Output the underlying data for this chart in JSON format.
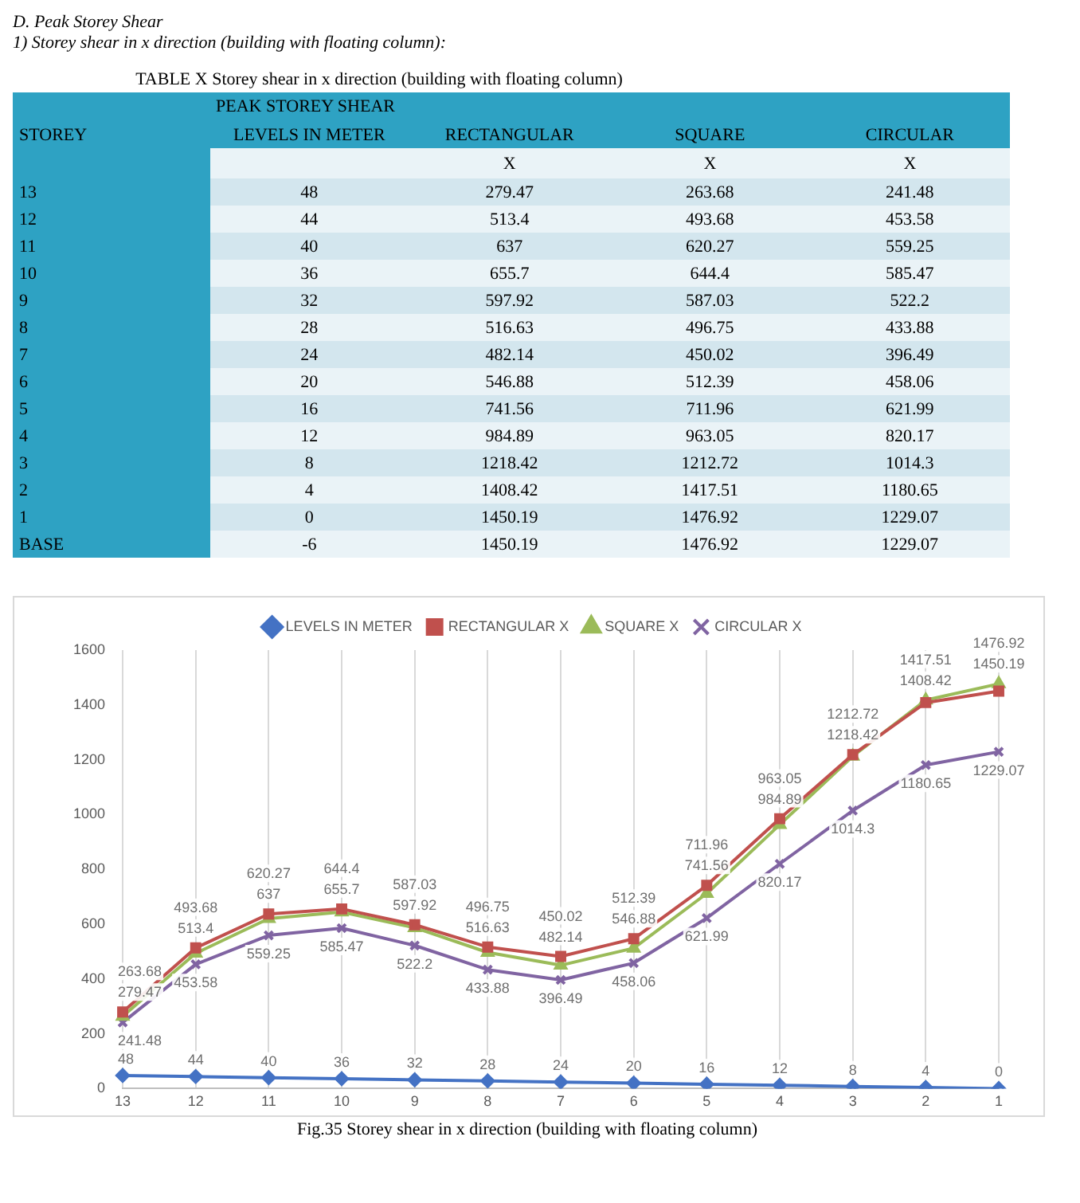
{
  "chart_data": [
    {
      "type": "heatmap",
      "annotations": [
        "D.  Peak Storey Shear",
        "1)  Storey shear in x direction (building with floating column):",
        "X",
        "X",
        "X"
      ],
      "title": "TABLE X Storey shear in x direction (building with floating column)",
      "data_labels": true,
      "subtitle": "PEAK STOREY SHEAR",
      "ylabel": "STOREY",
      "categories": [
        "LEVELS IN METER",
        "RECTANGULAR",
        "SQUARE",
        "CIRCULAR"
      ],
      "y_categories": [
        "13",
        "12",
        "11",
        "10",
        "9",
        "8",
        "7",
        "6",
        "5",
        "4",
        "3",
        "2",
        "1",
        "BASE"
      ],
      "cells": [
        [
          48,
          279.47,
          263.68,
          241.48
        ],
        [
          44,
          513.4,
          493.68,
          453.58
        ],
        [
          40,
          637,
          620.27,
          559.25
        ],
        [
          36,
          655.7,
          644.4,
          585.47
        ],
        [
          32,
          597.92,
          587.03,
          522.2
        ],
        [
          28,
          516.63,
          496.75,
          433.88
        ],
        [
          24,
          482.14,
          450.02,
          396.49
        ],
        [
          20,
          546.88,
          512.39,
          458.06
        ],
        [
          16,
          741.56,
          711.96,
          621.99
        ],
        [
          12,
          984.89,
          963.05,
          820.17
        ],
        [
          8,
          1218.42,
          1212.72,
          1014.3
        ],
        [
          4,
          1408.42,
          1417.51,
          1180.65
        ],
        [
          0,
          1450.19,
          1476.92,
          1229.07
        ],
        [
          -6,
          1450.19,
          1476.92,
          1229.07
        ]
      ]
    },
    {
      "type": "line",
      "categories": [
        "13",
        "12",
        "11",
        "10",
        "9",
        "8",
        "7",
        "6",
        "5",
        "4",
        "3",
        "2",
        "1"
      ],
      "series": [
        {
          "name": "LEVELS IN METER",
          "color": "#4472c4",
          "marker": "diamond",
          "values": [
            48,
            44,
            40,
            36,
            32,
            28,
            24,
            20,
            16,
            12,
            8,
            4,
            0
          ]
        },
        {
          "name": "RECTANGULAR X",
          "color": "#c0504d",
          "marker": "square",
          "values": [
            279.47,
            513.4,
            637,
            655.7,
            597.92,
            516.63,
            482.14,
            546.88,
            741.56,
            984.89,
            1218.42,
            1408.42,
            1450.19
          ]
        },
        {
          "name": "SQUARE X",
          "color": "#9bbb59",
          "marker": "triangle",
          "values": [
            263.68,
            493.68,
            620.27,
            644.4,
            587.03,
            496.75,
            450.02,
            512.39,
            711.96,
            963.05,
            1212.72,
            1417.51,
            1476.92
          ]
        },
        {
          "name": "CIRCULAR X",
          "color": "#8064a2",
          "marker": "cross",
          "values": [
            241.48,
            453.58,
            559.25,
            585.47,
            522.2,
            433.88,
            396.49,
            458.06,
            621.99,
            820.17,
            1014.3,
            1180.65,
            1229.07
          ]
        }
      ],
      "ylim": [
        0,
        1600
      ],
      "yticks": [
        0,
        200,
        400,
        600,
        800,
        1000,
        1200,
        1400,
        1600
      ],
      "grid": "x",
      "legend": "top",
      "data_labels": true,
      "annotations": [
        "Fig.35 Storey shear in x direction (building with floating column)"
      ]
    }
  ]
}
